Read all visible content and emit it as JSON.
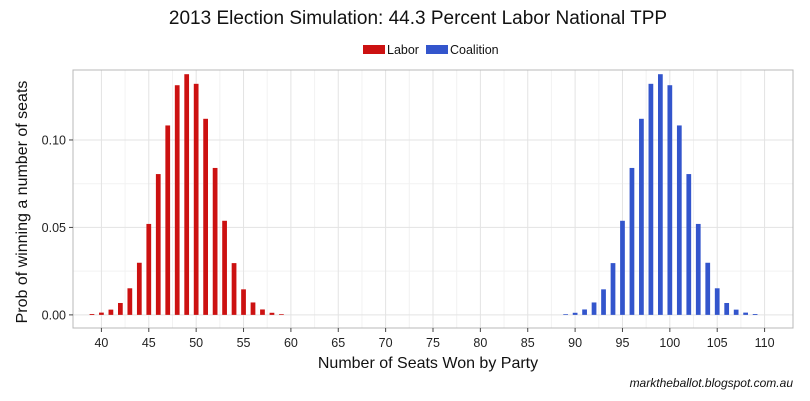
{
  "chart_data": {
    "type": "bar",
    "title": "2013 Election Simulation: 44.3 Percent Labor National TPP",
    "xlabel": "Number of Seats Won by Party",
    "ylabel": "Prob of winning a number of seats",
    "credit": "marktheballot.blogspot.com.au",
    "xlim": [
      37,
      113
    ],
    "ylim": [
      -0.0075,
      0.14
    ],
    "x_ticks": [
      40,
      45,
      50,
      55,
      60,
      65,
      70,
      75,
      80,
      85,
      90,
      95,
      100,
      105,
      110
    ],
    "y_ticks": [
      0.0,
      0.05,
      0.1
    ],
    "y_tick_labels": [
      "0.00",
      "0.05",
      "0.10"
    ],
    "legend_position": "top",
    "series": [
      {
        "name": "Labor",
        "color": "#cc1111",
        "x": [
          39,
          40,
          41,
          42,
          43,
          44,
          45,
          46,
          47,
          48,
          49,
          50,
          51,
          52,
          53,
          54,
          55,
          56,
          57,
          58,
          59
        ],
        "values": [
          0.0005,
          0.0013,
          0.003,
          0.0068,
          0.0152,
          0.0298,
          0.052,
          0.0805,
          0.1083,
          0.1313,
          0.1376,
          0.1321,
          0.1121,
          0.084,
          0.0538,
          0.0296,
          0.0146,
          0.0071,
          0.0031,
          0.0012,
          0.0004
        ]
      },
      {
        "name": "Coalition",
        "color": "#3355cc",
        "x": [
          89,
          90,
          91,
          92,
          93,
          94,
          95,
          96,
          97,
          98,
          99,
          100,
          101,
          102,
          103,
          104,
          105,
          106,
          107,
          108,
          109
        ],
        "values": [
          0.0004,
          0.0012,
          0.0031,
          0.0071,
          0.0146,
          0.0296,
          0.0538,
          0.084,
          0.1121,
          0.1321,
          0.1376,
          0.1313,
          0.1083,
          0.0805,
          0.052,
          0.0298,
          0.0152,
          0.0068,
          0.003,
          0.0013,
          0.0005
        ]
      }
    ]
  }
}
